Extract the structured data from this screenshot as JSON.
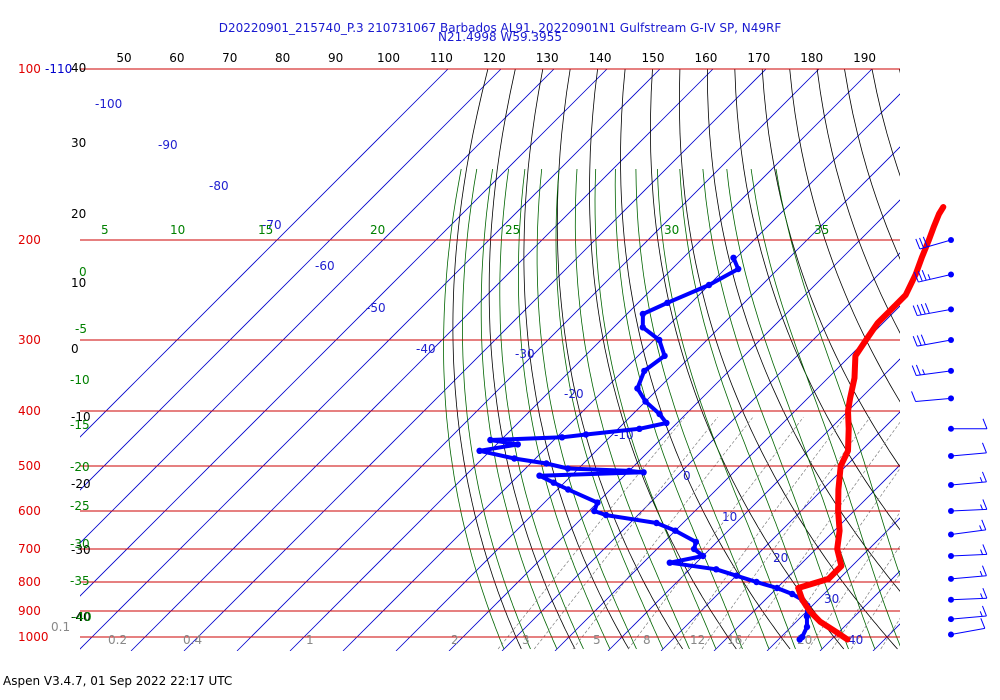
{
  "title_line1": "D20220901_215740_P.3 210731067 Barbados AL91, 20220901N1 Gulfstream G-IV SP, N49RF",
  "title_line2": "N21.4998 W59.3955",
  "footer": "Aspen V3.4.7, 01 Sep 2022  22:17 UTC",
  "colors": {
    "temperature": "#ff0000",
    "dewpoint": "#0000ff",
    "isobar": "#cc0000",
    "isotherm": "#0000cc",
    "dry_adiabat": "#000000",
    "moist_adiabat": "#006400",
    "mixing_ratio": "#808080",
    "wind_barb": "#0000ff"
  },
  "chart_data": {
    "type": "skew-t log-p",
    "ylim_hpa": [
      1000,
      100
    ],
    "xlim_c": [
      -40,
      40
    ],
    "pressure_levels": [
      "100",
      "200",
      "300",
      "400",
      "500",
      "600",
      "700",
      "800",
      "900",
      "1000"
    ],
    "upper_pressure_label": "-110",
    "top_axis_ticks": [
      "50",
      "60",
      "70",
      "80",
      "90",
      "100",
      "110",
      "120",
      "130",
      "140",
      "150",
      "160",
      "170",
      "180",
      "190"
    ],
    "left_height_labels": [
      "40",
      "30",
      "20",
      "10",
      "0",
      "-10",
      "-20",
      "-30",
      "-40"
    ],
    "isotherm_labels": [
      "-100",
      "-90",
      "-80",
      "-70",
      "-60",
      "-50",
      "-40",
      "-30",
      "-20",
      "-10",
      "0",
      "10",
      "20",
      "30",
      "40"
    ],
    "moist_adiabat_labels": [
      "5",
      "10",
      "15",
      "20",
      "25",
      "30",
      "35",
      "0",
      "-5",
      "-10",
      "-15",
      "-20",
      "-25",
      "-30",
      "-35",
      "-40"
    ],
    "mixing_ratio_labels": [
      "0.1",
      "0.2",
      "0.4",
      "1",
      "2",
      "3",
      "5",
      "8",
      "12",
      "16",
      "20"
    ],
    "temperature_profile": [
      {
        "p": 175,
        "t": -40.5
      },
      {
        "p": 180,
        "t": -40
      },
      {
        "p": 190,
        "t": -38.5
      },
      {
        "p": 200,
        "t": -37
      },
      {
        "p": 215,
        "t": -35
      },
      {
        "p": 230,
        "t": -33
      },
      {
        "p": 250,
        "t": -31
      },
      {
        "p": 260,
        "t": -31
      },
      {
        "p": 280,
        "t": -31
      },
      {
        "p": 300,
        "t": -30
      },
      {
        "p": 320,
        "t": -29
      },
      {
        "p": 350,
        "t": -25
      },
      {
        "p": 380,
        "t": -22
      },
      {
        "p": 400,
        "t": -20
      },
      {
        "p": 430,
        "t": -16.5
      },
      {
        "p": 470,
        "t": -12.5
      },
      {
        "p": 500,
        "t": -11
      },
      {
        "p": 550,
        "t": -7
      },
      {
        "p": 600,
        "t": -3
      },
      {
        "p": 650,
        "t": 1
      },
      {
        "p": 700,
        "t": 4
      },
      {
        "p": 750,
        "t": 8
      },
      {
        "p": 790,
        "t": 8
      },
      {
        "p": 820,
        "t": 4
      },
      {
        "p": 860,
        "t": 7
      },
      {
        "p": 900,
        "t": 10.5
      },
      {
        "p": 940,
        "t": 14.5
      },
      {
        "p": 980,
        "t": 19.5
      },
      {
        "p": 1010,
        "t": 23
      }
    ],
    "dewpoint_profile": [
      {
        "p": 215,
        "t": -70.5
      },
      {
        "p": 225,
        "t": -67.5
      },
      {
        "p": 240,
        "t": -70
      },
      {
        "p": 258,
        "t": -74.5
      },
      {
        "p": 270,
        "t": -77
      },
      {
        "p": 285,
        "t": -74.5
      },
      {
        "p": 300,
        "t": -69
      },
      {
        "p": 320,
        "t": -65
      },
      {
        "p": 340,
        "t": -66
      },
      {
        "p": 365,
        "t": -64
      },
      {
        "p": 385,
        "t": -60
      },
      {
        "p": 405,
        "t": -55
      },
      {
        "p": 420,
        "t": -52
      },
      {
        "p": 430,
        "t": -56
      },
      {
        "p": 440,
        "t": -65
      },
      {
        "p": 445,
        "t": -69
      },
      {
        "p": 450,
        "t": -82
      },
      {
        "p": 458,
        "t": -76
      },
      {
        "p": 470,
        "t": -82
      },
      {
        "p": 485,
        "t": -74
      },
      {
        "p": 495,
        "t": -67
      },
      {
        "p": 505,
        "t": -62
      },
      {
        "p": 510,
        "t": -50
      },
      {
        "p": 513,
        "t": -47
      },
      {
        "p": 520,
        "t": -66
      },
      {
        "p": 535,
        "t": -62
      },
      {
        "p": 550,
        "t": -58
      },
      {
        "p": 580,
        "t": -50
      },
      {
        "p": 600,
        "t": -49
      },
      {
        "p": 610,
        "t": -46
      },
      {
        "p": 630,
        "t": -35
      },
      {
        "p": 650,
        "t": -30
      },
      {
        "p": 680,
        "t": -24
      },
      {
        "p": 700,
        "t": -23
      },
      {
        "p": 720,
        "t": -20
      },
      {
        "p": 740,
        "t": -25
      },
      {
        "p": 760,
        "t": -15
      },
      {
        "p": 780,
        "t": -10
      },
      {
        "p": 800,
        "t": -5
      },
      {
        "p": 820,
        "t": 0
      },
      {
        "p": 840,
        "t": 4
      },
      {
        "p": 860,
        "t": 7
      },
      {
        "p": 880,
        "t": 9
      },
      {
        "p": 920,
        "t": 11
      },
      {
        "p": 960,
        "t": 13
      },
      {
        "p": 1000,
        "t": 14
      },
      {
        "p": 1010,
        "t": 14
      }
    ],
    "wind_barbs": [
      {
        "p": 200,
        "dir": 120,
        "speed": 30
      },
      {
        "p": 230,
        "dir": 115,
        "speed": 35
      },
      {
        "p": 265,
        "dir": 110,
        "speed": 40
      },
      {
        "p": 300,
        "dir": 110,
        "speed": 30
      },
      {
        "p": 340,
        "dir": 105,
        "speed": 25
      },
      {
        "p": 380,
        "dir": 100,
        "speed": 10
      },
      {
        "p": 430,
        "dir": 90,
        "speed": 10
      },
      {
        "p": 480,
        "dir": 80,
        "speed": 10
      },
      {
        "p": 540,
        "dir": 80,
        "speed": 15
      },
      {
        "p": 600,
        "dir": 85,
        "speed": 15
      },
      {
        "p": 660,
        "dir": 75,
        "speed": 15
      },
      {
        "p": 720,
        "dir": 85,
        "speed": 15
      },
      {
        "p": 790,
        "dir": 80,
        "speed": 15
      },
      {
        "p": 860,
        "dir": 85,
        "speed": 15
      },
      {
        "p": 930,
        "dir": 80,
        "speed": 15
      },
      {
        "p": 990,
        "dir": 70,
        "speed": 10
      }
    ]
  }
}
